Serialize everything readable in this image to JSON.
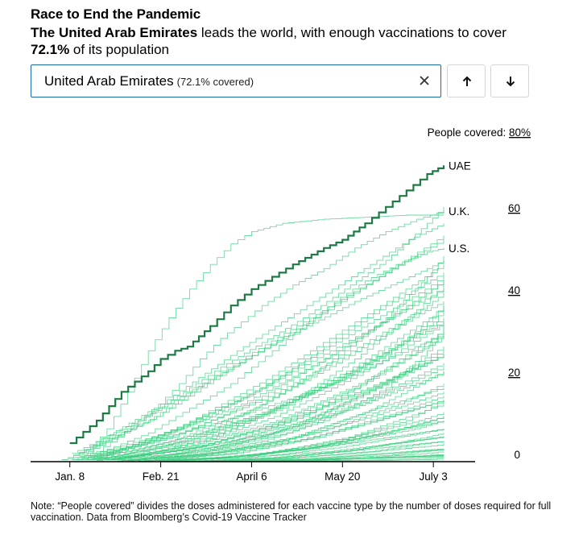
{
  "header": {
    "title": "Race to End the Pandemic",
    "subtitle_bold_country": "The United Arab Emirates",
    "subtitle_middle": " leads the world, with enough vaccinations to cover",
    "subtitle_bold_pct": "72.1%",
    "subtitle_end": " of its population"
  },
  "search": {
    "country": "United Arab Emirates",
    "coverage": "(72.1% covered)",
    "clear_icon": "close-icon",
    "up_icon": "arrow-up-icon",
    "down_icon": "arrow-down-icon"
  },
  "footnote": "Note: “People covered” divides the doses administered for each vaccine type by the number of doses required for full vaccination. Data from Bloomberg’s Covid-19 Vaccine Tracker",
  "colors": {
    "highlight": "#1e7a45",
    "background_lines": "#3ecf80",
    "axis": "#000000",
    "search_border": "#1c6aa8"
  },
  "chart_data": {
    "type": "line",
    "title": "Race to End the Pandemic",
    "ylabel_prefix": "People covered: ",
    "ylabel_top_tick": "80%",
    "y_ticks": [
      "0",
      "20",
      "40",
      "60"
    ],
    "ylim": [
      0,
      80
    ],
    "x_tick_labels": [
      "Jan. 8",
      "Feb. 21",
      "April 6",
      "May 20",
      "July 3"
    ],
    "x_tick_days": [
      27,
      71,
      115,
      159,
      203
    ],
    "x_range_days": [
      8,
      208
    ],
    "grid": false,
    "highlight_series": "UAE",
    "series": [
      {
        "name": "UAE",
        "highlight": true,
        "x": [
          27,
          40,
          52,
          65,
          71,
          78,
          84,
          95,
          105,
          115,
          125,
          135,
          150,
          159,
          170,
          180,
          190,
          200,
          208
        ],
        "y": [
          4.5,
          10,
          17,
          22,
          25,
          27,
          28,
          33,
          38,
          42,
          45,
          48,
          52,
          54,
          58,
          62,
          66,
          70,
          72.1
        ]
      },
      {
        "name": "U.K.",
        "labeled": true,
        "x": [
          28,
          40,
          50,
          60,
          70,
          80,
          90,
          100,
          110,
          120,
          135,
          150,
          165,
          180,
          195,
          208
        ],
        "y": [
          0.5,
          2.5,
          6,
          10,
          14,
          19,
          25,
          30,
          34,
          38,
          43,
          47,
          52,
          56,
          59,
          61
        ]
      },
      {
        "name": "U.S.",
        "labeled": true,
        "x": [
          23,
          35,
          45,
          55,
          65,
          75,
          85,
          95,
          105,
          115,
          125,
          135,
          145,
          155,
          170,
          185,
          200,
          208
        ],
        "y": [
          0.5,
          1.5,
          3,
          5,
          7,
          10,
          13,
          16,
          19,
          23,
          27,
          31,
          35,
          39,
          44,
          48,
          51,
          52
        ]
      },
      {
        "x": [
          35,
          45,
          55,
          65,
          75,
          85,
          95,
          105,
          115,
          130,
          150,
          170,
          190,
          208
        ],
        "y": [
          2,
          8,
          17,
          27,
          35,
          42,
          48,
          53,
          56,
          58,
          59,
          59.5,
          60,
          60
        ]
      },
      {
        "x": [
          26,
          40,
          55,
          70,
          85,
          100,
          120,
          140,
          160,
          180,
          200,
          208
        ],
        "y": [
          1,
          4,
          8,
          13,
          18,
          23,
          29,
          35,
          42,
          49,
          58,
          62
        ]
      },
      {
        "x": [
          40,
          60,
          80,
          100,
          120,
          140,
          160,
          180,
          200,
          208
        ],
        "y": [
          0.5,
          2,
          5,
          9,
          14,
          20,
          27,
          35,
          45,
          50
        ]
      },
      {
        "x": [
          30,
          60,
          90,
          120,
          150,
          180,
          200,
          208
        ],
        "y": [
          0.5,
          3,
          7,
          12,
          18,
          26,
          34,
          38
        ]
      },
      {
        "x": [
          60,
          90,
          120,
          150,
          180,
          200,
          208
        ],
        "y": [
          0.2,
          2,
          5,
          10,
          18,
          27,
          33
        ]
      },
      {
        "x": [
          30,
          60,
          90,
          120,
          150,
          180,
          208
        ],
        "y": [
          0.5,
          4,
          10,
          18,
          28,
          38,
          46
        ]
      },
      {
        "x": [
          45,
          75,
          105,
          135,
          165,
          195,
          208
        ],
        "y": [
          0.5,
          3,
          8,
          15,
          25,
          37,
          43
        ]
      },
      {
        "x": [
          35,
          70,
          105,
          140,
          175,
          208
        ],
        "y": [
          0.5,
          2,
          5,
          10,
          18,
          27
        ]
      },
      {
        "x": [
          50,
          90,
          130,
          170,
          208
        ],
        "y": [
          0.2,
          1.5,
          5,
          12,
          22
        ]
      },
      {
        "x": [
          70,
          110,
          150,
          190,
          208
        ],
        "y": [
          0.2,
          1,
          4,
          10,
          15
        ]
      },
      {
        "x": [
          40,
          80,
          120,
          160,
          200,
          208
        ],
        "y": [
          0.3,
          2,
          6,
          14,
          24,
          26
        ]
      },
      {
        "x": [
          60,
          100,
          140,
          180,
          208
        ],
        "y": [
          0.2,
          1,
          3,
          7,
          11
        ]
      },
      {
        "x": [
          80,
          120,
          160,
          200,
          208
        ],
        "y": [
          0.1,
          0.8,
          2.5,
          6,
          7
        ]
      },
      {
        "x": [
          55,
          95,
          135,
          175,
          208
        ],
        "y": [
          0.2,
          2,
          6,
          13,
          18
        ]
      },
      {
        "x": [
          45,
          85,
          125,
          165,
          205,
          208
        ],
        "y": [
          0.5,
          3,
          9,
          18,
          31,
          33
        ]
      },
      {
        "x": [
          90,
          130,
          170,
          208
        ],
        "y": [
          0.1,
          1,
          3,
          5
        ]
      },
      {
        "x": [
          100,
          140,
          180,
          208
        ],
        "y": [
          0.1,
          0.5,
          1.5,
          3
        ]
      },
      {
        "x": [
          33,
          70,
          110,
          150,
          190,
          208
        ],
        "y": [
          0.5,
          6,
          14,
          25,
          38,
          44
        ]
      },
      {
        "x": [
          40,
          80,
          120,
          160,
          200,
          208
        ],
        "y": [
          1,
          7,
          15,
          26,
          38,
          41
        ]
      },
      {
        "x": [
          38,
          78,
          118,
          158,
          198,
          208
        ],
        "y": [
          0.5,
          4,
          11,
          20,
          32,
          35
        ]
      },
      {
        "x": [
          65,
          105,
          145,
          185,
          208
        ],
        "y": [
          0.3,
          2,
          6,
          12,
          16
        ]
      },
      {
        "x": [
          120,
          160,
          200,
          208
        ],
        "y": [
          0.1,
          0.6,
          2,
          2.5
        ]
      },
      {
        "x": [
          42,
          82,
          122,
          162,
          202,
          208
        ],
        "y": [
          1,
          9,
          20,
          33,
          46,
          48
        ]
      },
      {
        "x": [
          36,
          76,
          116,
          156,
          196,
          208
        ],
        "y": [
          0.5,
          5,
          13,
          24,
          36,
          39
        ]
      },
      {
        "x": [
          75,
          115,
          155,
          195,
          208
        ],
        "y": [
          0.2,
          1.5,
          4.5,
          9,
          11
        ]
      },
      {
        "x": [
          30,
          65,
          100,
          140,
          180,
          208
        ],
        "y": [
          1,
          10,
          22,
          34,
          46,
          54
        ]
      },
      {
        "x": [
          50,
          90,
          130,
          170,
          208
        ],
        "y": [
          0.5,
          5,
          13,
          24,
          34
        ]
      },
      {
        "x": [
          85,
          125,
          165,
          205,
          208
        ],
        "y": [
          0.1,
          0.7,
          2,
          4,
          4.5
        ]
      },
      {
        "x": [
          58,
          98,
          138,
          178,
          208
        ],
        "y": [
          0.3,
          3,
          9,
          19,
          28
        ]
      },
      {
        "x": [
          110,
          150,
          190,
          208
        ],
        "y": [
          0.1,
          0.5,
          1.2,
          1.6
        ]
      },
      {
        "x": [
          95,
          135,
          175,
          208
        ],
        "y": [
          0.1,
          0.4,
          1,
          1.4
        ]
      },
      {
        "x": [
          44,
          84,
          124,
          164,
          204,
          208
        ],
        "y": [
          0.5,
          3,
          7,
          13,
          21,
          22
        ]
      },
      {
        "x": [
          52,
          92,
          132,
          172,
          208
        ],
        "y": [
          0.4,
          2.5,
          7,
          15,
          23
        ]
      },
      {
        "x": [
          68,
          108,
          148,
          188,
          208
        ],
        "y": [
          0.3,
          2,
          6,
          12,
          15
        ]
      },
      {
        "x": [
          34,
          74,
          114,
          154,
          194,
          208
        ],
        "y": [
          1,
          6,
          12,
          19,
          28,
          31
        ]
      },
      {
        "x": [
          46,
          86,
          126,
          166,
          206,
          208
        ],
        "y": [
          0.5,
          4,
          11,
          21,
          33,
          34
        ]
      },
      {
        "x": [
          62,
          102,
          142,
          182,
          208
        ],
        "y": [
          0.2,
          1,
          3,
          6,
          8
        ]
      },
      {
        "x": [
          78,
          118,
          158,
          198,
          208
        ],
        "y": [
          0.2,
          1.2,
          3.5,
          7,
          8
        ]
      },
      {
        "x": [
          88,
          128,
          168,
          208
        ],
        "y": [
          0.1,
          0.3,
          0.8,
          1.2
        ]
      },
      {
        "x": [
          31,
          71,
          111,
          151,
          191,
          208
        ],
        "y": [
          2,
          14,
          28,
          41,
          54,
          58
        ]
      },
      {
        "x": [
          39,
          79,
          119,
          159,
          199,
          208
        ],
        "y": [
          1,
          8,
          18,
          30,
          42,
          45
        ]
      },
      {
        "x": [
          48,
          88,
          128,
          168,
          208
        ],
        "y": [
          0.5,
          3.5,
          9,
          17,
          26
        ]
      },
      {
        "x": [
          56,
          96,
          136,
          176,
          208
        ],
        "y": [
          0.3,
          2,
          5,
          10,
          15
        ]
      },
      {
        "x": [
          72,
          112,
          152,
          192,
          208
        ],
        "y": [
          0.2,
          1,
          2.5,
          5,
          6
        ]
      },
      {
        "x": [
          82,
          122,
          162,
          202,
          208
        ],
        "y": [
          0.2,
          2,
          6,
          13,
          14
        ]
      },
      {
        "x": [
          92,
          132,
          172,
          208
        ],
        "y": [
          0.1,
          0.8,
          2.5,
          5
        ]
      },
      {
        "x": [
          102,
          142,
          182,
          208
        ],
        "y": [
          0.1,
          0.6,
          2,
          3
        ]
      },
      {
        "x": [
          37,
          77,
          117,
          157,
          197,
          208
        ],
        "y": [
          0.8,
          6,
          15,
          27,
          40,
          44
        ]
      },
      {
        "x": [
          41,
          81,
          121,
          161,
          201,
          208
        ],
        "y": [
          0.6,
          5,
          12,
          22,
          35,
          38
        ]
      },
      {
        "x": [
          54,
          94,
          134,
          174,
          208
        ],
        "y": [
          0.4,
          3,
          8,
          16,
          24
        ]
      },
      {
        "x": [
          66,
          106,
          146,
          186,
          208
        ],
        "y": [
          0.3,
          2.5,
          7,
          14,
          19
        ]
      },
      {
        "x": [
          29,
          69,
          109,
          149,
          189,
          208
        ],
        "y": [
          1.5,
          11,
          24,
          36,
          49,
          55
        ]
      },
      {
        "x": [
          43,
          83,
          123,
          163,
          203,
          208
        ],
        "y": [
          0.7,
          5,
          12,
          22,
          34,
          37
        ]
      },
      {
        "x": [
          74,
          114,
          154,
          194,
          208
        ],
        "y": [
          0.2,
          1.5,
          4,
          8,
          10
        ]
      },
      {
        "x": [
          130,
          170,
          208
        ],
        "y": [
          0.1,
          0.4,
          0.9
        ]
      },
      {
        "x": [
          115,
          155,
          195,
          208
        ],
        "y": [
          0.1,
          0.5,
          1.4,
          1.8
        ]
      },
      {
        "x": [
          140,
          180,
          208
        ],
        "y": [
          0.1,
          0.3,
          0.6
        ]
      },
      {
        "x": [
          60,
          100,
          140,
          180,
          208
        ],
        "y": [
          0.5,
          4,
          11,
          22,
          31
        ]
      },
      {
        "x": [
          47,
          87,
          127,
          167,
          207,
          208
        ],
        "y": [
          0.5,
          4,
          10,
          19,
          30,
          30.5
        ]
      },
      {
        "x": [
          33,
          73,
          113,
          153,
          193,
          208
        ],
        "y": [
          1,
          7,
          16,
          27,
          38,
          42
        ]
      },
      {
        "x": [
          53,
          93,
          133,
          173,
          208
        ],
        "y": [
          0.3,
          2,
          5.5,
          11,
          17
        ]
      },
      {
        "x": [
          64,
          104,
          144,
          184,
          208
        ],
        "y": [
          0.2,
          1.2,
          3.5,
          7.5,
          10
        ]
      },
      {
        "x": [
          98,
          138,
          178,
          208
        ],
        "y": [
          0.1,
          0.7,
          2,
          3.2
        ]
      },
      {
        "x": [
          108,
          148,
          188,
          208
        ],
        "y": [
          0.1,
          0.4,
          1.1,
          1.6
        ]
      },
      {
        "x": [
          86,
          126,
          166,
          206,
          208
        ],
        "y": [
          0.1,
          1,
          3,
          6,
          6.2
        ]
      },
      {
        "x": [
          76,
          116,
          156,
          196,
          208
        ],
        "y": [
          0.2,
          1.8,
          5,
          10,
          12
        ]
      },
      {
        "x": [
          51,
          91,
          131,
          171,
          208
        ],
        "y": [
          0.5,
          4,
          10,
          18,
          26
        ]
      },
      {
        "x": [
          28,
          60,
          95,
          130,
          165,
          200,
          208
        ],
        "y": [
          2,
          10,
          20,
          30,
          39,
          47,
          49
        ]
      }
    ]
  }
}
